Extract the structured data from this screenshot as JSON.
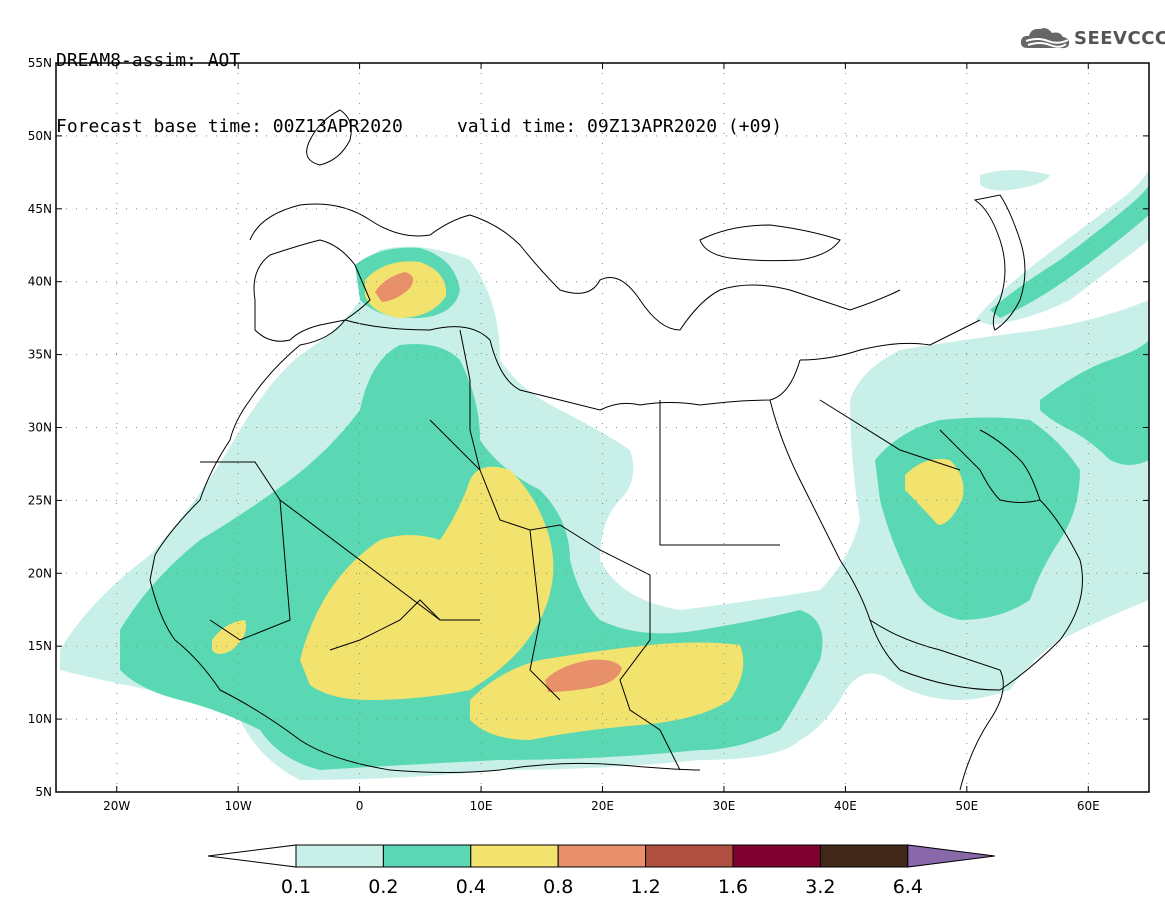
{
  "header": {
    "line1": "DREAM8-assim: AOT",
    "line2": "Forecast base time: 00Z13APR2020     valid time: 09Z13APR2020 (+09)"
  },
  "logo": {
    "text": "SEEVCCC",
    "icon": "cloud-icon"
  },
  "map": {
    "lon_range": [
      -25,
      65
    ],
    "lat_range": [
      5,
      55
    ],
    "lat_labels": [
      "55N",
      "50N",
      "45N",
      "40N",
      "35N",
      "30N",
      "25N",
      "20N",
      "15N",
      "10N",
      "5N"
    ],
    "lat_values": [
      55,
      50,
      45,
      40,
      35,
      30,
      25,
      20,
      15,
      10,
      5
    ],
    "lon_labels": [
      "20W",
      "10W",
      "0",
      "10E",
      "20E",
      "30E",
      "40E",
      "50E",
      "60E"
    ],
    "lon_values": [
      -20,
      -10,
      0,
      10,
      20,
      30,
      40,
      50,
      60
    ]
  },
  "colorbar": {
    "labels": [
      "0.1",
      "0.2",
      "0.4",
      "0.8",
      "1.2",
      "1.6",
      "3.2",
      "6.4"
    ],
    "colors": [
      "#c8f0e8",
      "#5ad8b4",
      "#f2e26e",
      "#e8906a",
      "#b05040",
      "#800030",
      "#402818",
      "#8868a8"
    ]
  },
  "colors": {
    "c1": "#c8f0e8",
    "c2": "#5ad8b4",
    "c3": "#f2e26e",
    "c4": "#e8906a"
  }
}
